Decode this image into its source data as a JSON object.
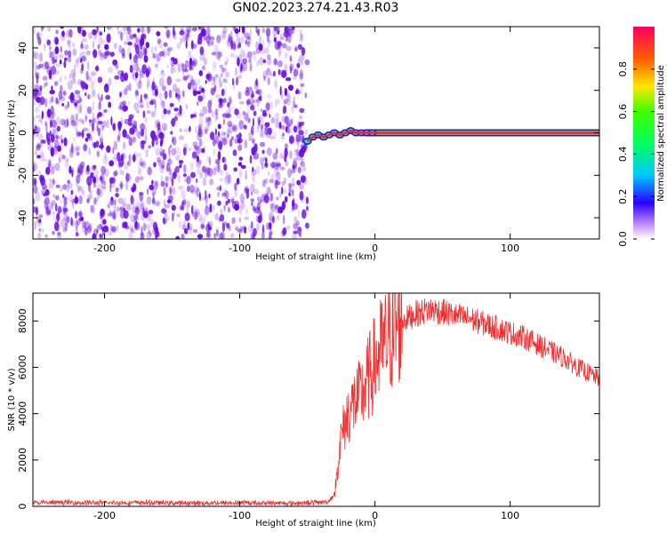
{
  "title": "GN02.2023.274.21.43.R03",
  "colors": {
    "signal_line": "#ff1f1f",
    "snr_line": "#f03030",
    "speckle": "#6a0ee0",
    "axes": "#000000"
  },
  "chart_data": [
    {
      "type": "heatmap",
      "panel": "top",
      "xlabel": "Height of straight line (km)",
      "ylabel": "Frequency (Hz)",
      "xlim": [
        -253,
        166
      ],
      "ylim": [
        -50,
        50
      ],
      "xticks": [
        -200,
        -100,
        0,
        100
      ],
      "yticks": [
        -40,
        -20,
        0,
        20,
        40
      ],
      "xticklabels": [
        "-200",
        "-100",
        "0",
        "100"
      ],
      "yticklabels": [
        "-40",
        "-20",
        "0",
        "20",
        "40"
      ],
      "noise_region_x": [
        -253,
        -50
      ],
      "signal_track": {
        "x": [
          -50,
          -46,
          -42,
          -38,
          -34,
          -30,
          -26,
          -22,
          -18,
          -14,
          -10,
          -6,
          -2,
          0,
          166
        ],
        "frequency": [
          -4,
          -2,
          -1,
          -2,
          -1,
          0,
          -1,
          0,
          1,
          0,
          0,
          0,
          0,
          0,
          0
        ]
      },
      "colorbar": {
        "label": "Normalized spectral amplitude",
        "range": [
          0,
          1
        ],
        "ticks": [
          0.0,
          0.2,
          0.4,
          0.6,
          0.8
        ],
        "ticklabels": [
          "0.0",
          "0.2",
          "0.4",
          "0.6",
          "0.8"
        ]
      }
    },
    {
      "type": "line",
      "panel": "bottom",
      "xlabel": "Height of straight line (km)",
      "ylabel": "SNR (10 * v/v)",
      "xlim": [
        -253,
        166
      ],
      "ylim": [
        0,
        9200
      ],
      "xticks": [
        -200,
        -100,
        0,
        100
      ],
      "yticks": [
        0,
        2000,
        4000,
        6000,
        8000
      ],
      "xticklabels": [
        "-200",
        "-100",
        "0",
        "100"
      ],
      "yticklabels": [
        "0",
        "2000",
        "4000",
        "6000",
        "8000"
      ],
      "series": [
        {
          "x": [
            -253,
            -230,
            -200,
            -170,
            -140,
            -100,
            -70,
            -50,
            -35,
            -30,
            -28,
            -25,
            -20,
            -15,
            -10,
            -5,
            0,
            5,
            10,
            15,
            20,
            30,
            40,
            50,
            60,
            70,
            80,
            90,
            100,
            110,
            120,
            130,
            140,
            150,
            160,
            166
          ],
          "values": [
            150,
            170,
            150,
            160,
            140,
            150,
            140,
            150,
            200,
            500,
            1500,
            3000,
            4000,
            4500,
            4800,
            5500,
            6200,
            6800,
            7200,
            7700,
            8000,
            8300,
            8500,
            8400,
            8200,
            8100,
            7900,
            7700,
            7500,
            7300,
            7000,
            6700,
            6400,
            6000,
            5700,
            5500
          ]
        }
      ]
    }
  ]
}
